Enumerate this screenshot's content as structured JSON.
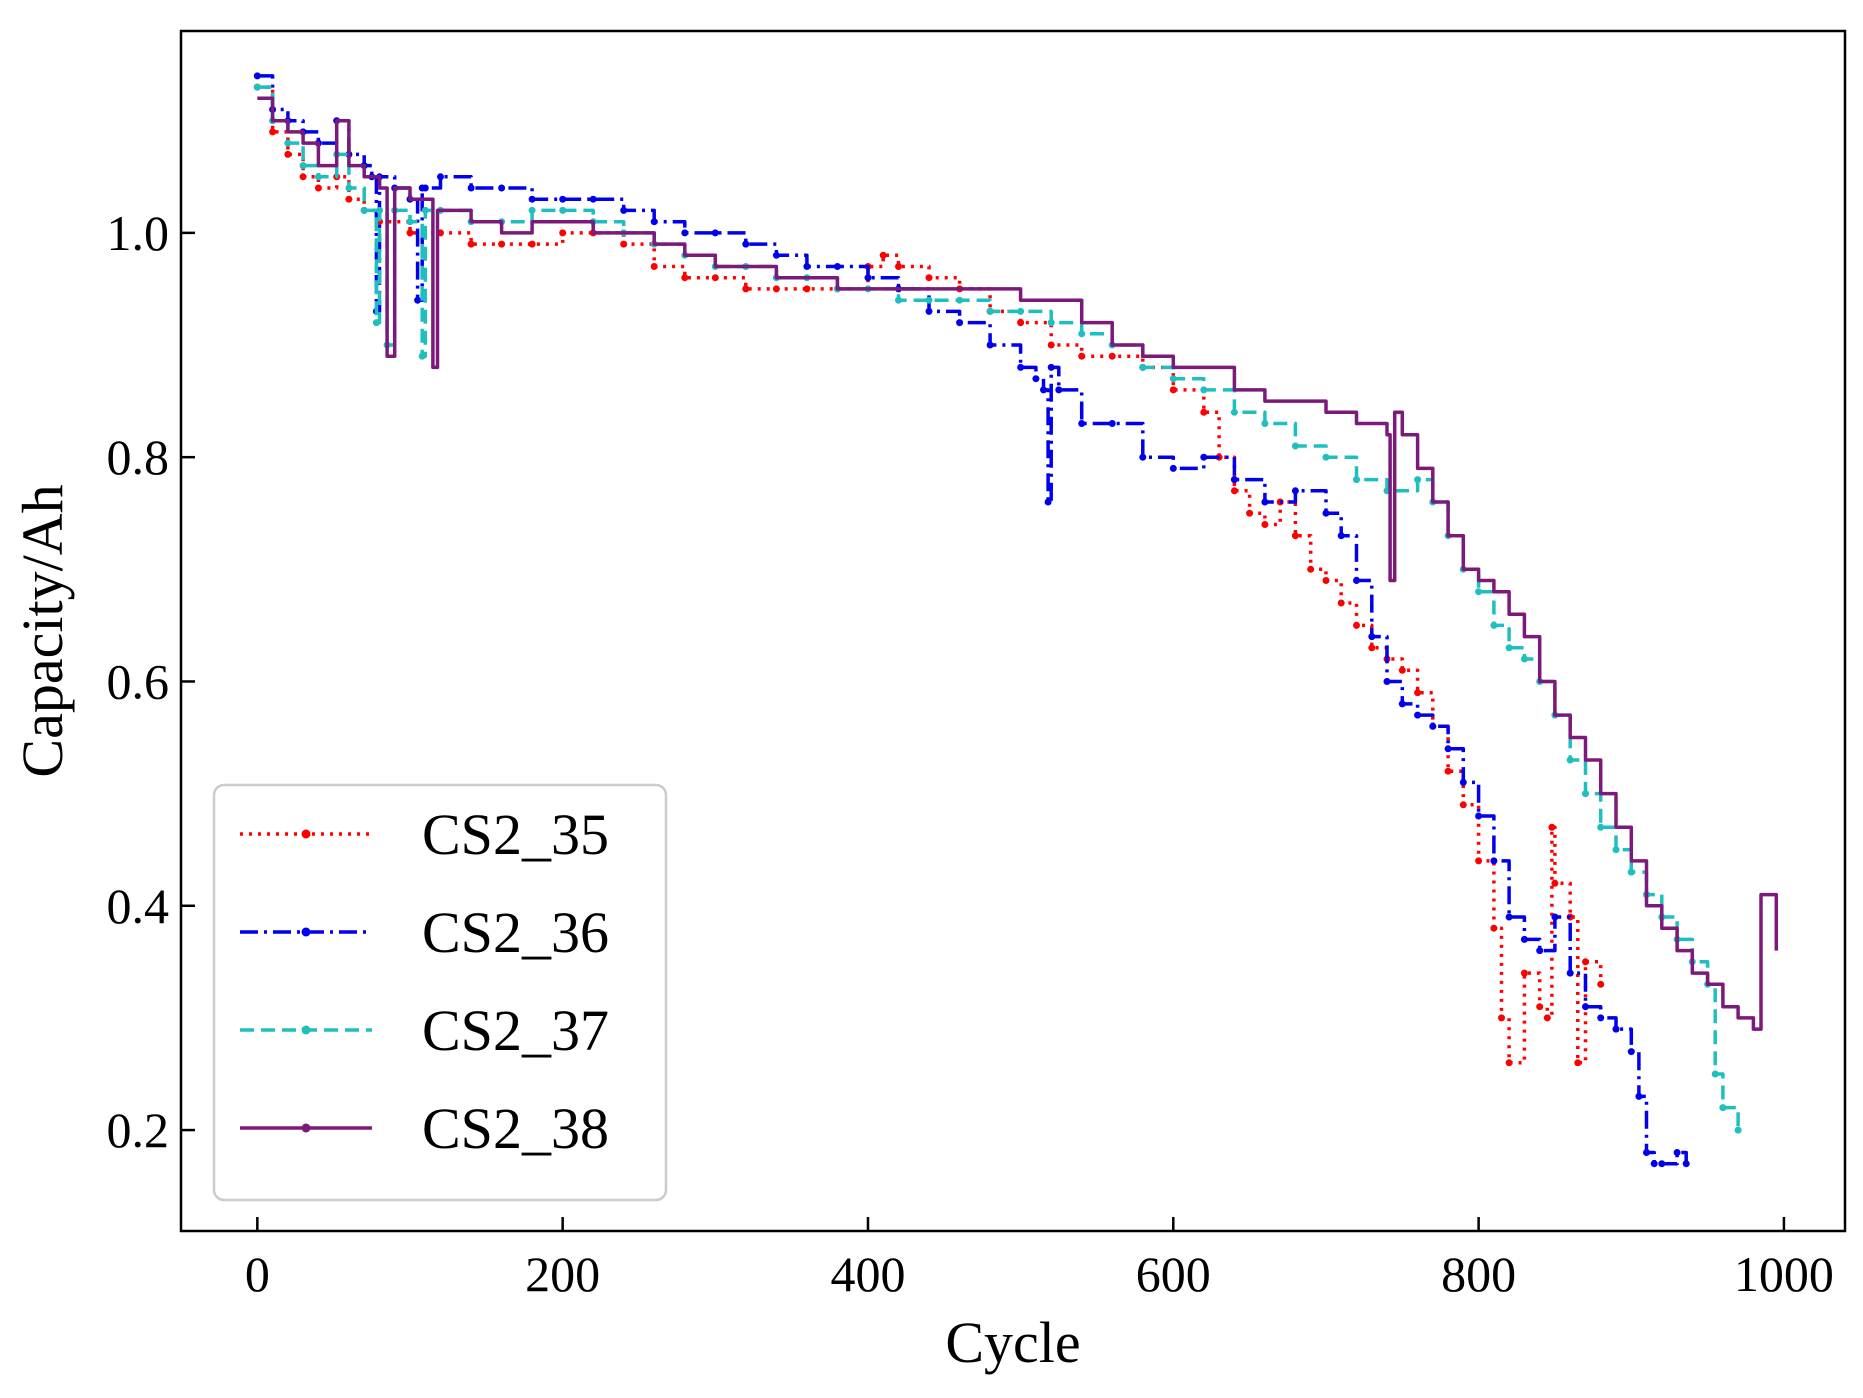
{
  "chart_data": {
    "type": "line",
    "title": "",
    "xlabel": "Cycle",
    "ylabel": "Capacity/Ah",
    "xlim": [
      -50,
      1040
    ],
    "ylim": [
      0.11,
      1.18
    ],
    "xticks": [
      0,
      200,
      400,
      600,
      800,
      1000
    ],
    "yticks": [
      0.2,
      0.4,
      0.6,
      0.8,
      1.0
    ],
    "xtick_labels": [
      "0",
      "200",
      "400",
      "600",
      "800",
      "1000"
    ],
    "ytick_labels": [
      "0.2",
      "0.4",
      "0.6",
      "0.8",
      "1.0"
    ],
    "grid": false,
    "legend_position": "lower-left",
    "series": [
      {
        "name": "CS2_35",
        "color": "#ff0000",
        "style": "dotted",
        "x": [
          0,
          10,
          20,
          30,
          40,
          52,
          60,
          70,
          80,
          100,
          120,
          140,
          160,
          180,
          200,
          220,
          240,
          260,
          280,
          300,
          320,
          340,
          360,
          380,
          400,
          410,
          420,
          440,
          460,
          480,
          500,
          520,
          540,
          560,
          580,
          600,
          620,
          630,
          640,
          650,
          660,
          670,
          680,
          690,
          700,
          710,
          720,
          730,
          740,
          750,
          760,
          770,
          780,
          790,
          800,
          810,
          815,
          820,
          830,
          840,
          845,
          848,
          850,
          860,
          865,
          870,
          880
        ],
        "y": [
          1.13,
          1.09,
          1.07,
          1.05,
          1.04,
          1.05,
          1.03,
          1.02,
          1.01,
          1.0,
          1.0,
          0.99,
          0.99,
          0.99,
          1.0,
          1.0,
          0.99,
          0.97,
          0.96,
          0.96,
          0.95,
          0.95,
          0.95,
          0.95,
          0.97,
          0.98,
          0.97,
          0.96,
          0.95,
          0.93,
          0.92,
          0.9,
          0.89,
          0.89,
          0.88,
          0.86,
          0.84,
          0.8,
          0.77,
          0.75,
          0.74,
          0.76,
          0.73,
          0.7,
          0.69,
          0.67,
          0.65,
          0.63,
          0.62,
          0.61,
          0.59,
          0.56,
          0.52,
          0.49,
          0.44,
          0.38,
          0.3,
          0.26,
          0.34,
          0.31,
          0.3,
          0.47,
          0.42,
          0.39,
          0.26,
          0.35,
          0.33
        ]
      },
      {
        "name": "CS2_36",
        "color": "#0000ee",
        "style": "dashdot",
        "x": [
          0,
          10,
          20,
          30,
          40,
          52,
          60,
          70,
          75,
          78,
          80,
          90,
          100,
          105,
          108,
          110,
          120,
          140,
          160,
          180,
          200,
          220,
          240,
          260,
          280,
          300,
          320,
          340,
          360,
          380,
          400,
          420,
          440,
          460,
          480,
          500,
          510,
          515,
          518,
          520,
          525,
          540,
          560,
          580,
          600,
          620,
          640,
          660,
          680,
          700,
          710,
          720,
          730,
          740,
          750,
          760,
          770,
          780,
          790,
          800,
          810,
          820,
          830,
          840,
          850,
          860,
          870,
          880,
          890,
          900,
          905,
          910,
          915,
          920,
          930,
          936
        ],
        "y": [
          1.14,
          1.11,
          1.1,
          1.09,
          1.08,
          1.1,
          1.07,
          1.06,
          1.05,
          0.93,
          1.05,
          1.04,
          1.03,
          0.94,
          1.04,
          1.04,
          1.05,
          1.04,
          1.04,
          1.03,
          1.03,
          1.03,
          1.02,
          1.01,
          1.0,
          1.0,
          0.99,
          0.98,
          0.97,
          0.97,
          0.96,
          0.95,
          0.93,
          0.92,
          0.9,
          0.88,
          0.87,
          0.86,
          0.76,
          0.88,
          0.86,
          0.83,
          0.83,
          0.8,
          0.79,
          0.8,
          0.78,
          0.76,
          0.77,
          0.75,
          0.73,
          0.69,
          0.64,
          0.6,
          0.58,
          0.57,
          0.56,
          0.54,
          0.51,
          0.48,
          0.44,
          0.39,
          0.37,
          0.36,
          0.39,
          0.34,
          0.31,
          0.3,
          0.29,
          0.27,
          0.23,
          0.18,
          0.17,
          0.17,
          0.18,
          0.17
        ]
      },
      {
        "name": "CS2_37",
        "color": "#1fbfbf",
        "style": "dashed",
        "x": [
          0,
          10,
          20,
          30,
          40,
          52,
          60,
          70,
          78,
          80,
          85,
          90,
          100,
          108,
          110,
          120,
          140,
          160,
          180,
          200,
          220,
          240,
          260,
          280,
          300,
          320,
          340,
          360,
          380,
          400,
          420,
          440,
          460,
          480,
          500,
          520,
          540,
          560,
          580,
          600,
          620,
          640,
          660,
          680,
          700,
          720,
          740,
          760,
          770,
          780,
          790,
          800,
          810,
          820,
          830,
          840,
          850,
          860,
          870,
          880,
          890,
          900,
          910,
          920,
          930,
          940,
          950,
          955,
          960,
          970
        ],
        "y": [
          1.13,
          1.1,
          1.08,
          1.06,
          1.05,
          1.07,
          1.04,
          1.02,
          0.92,
          1.02,
          0.9,
          1.02,
          1.01,
          0.89,
          1.02,
          1.02,
          1.01,
          1.01,
          1.02,
          1.02,
          1.01,
          1.0,
          0.99,
          0.98,
          0.97,
          0.97,
          0.96,
          0.96,
          0.95,
          0.95,
          0.94,
          0.94,
          0.94,
          0.93,
          0.93,
          0.92,
          0.91,
          0.9,
          0.88,
          0.87,
          0.86,
          0.84,
          0.83,
          0.81,
          0.8,
          0.78,
          0.77,
          0.78,
          0.76,
          0.73,
          0.7,
          0.68,
          0.65,
          0.63,
          0.62,
          0.6,
          0.57,
          0.53,
          0.5,
          0.47,
          0.45,
          0.43,
          0.41,
          0.39,
          0.37,
          0.35,
          0.33,
          0.25,
          0.22,
          0.2
        ]
      },
      {
        "name": "CS2_38",
        "color": "#7b1a7b",
        "style": "solid",
        "x": [
          0,
          10,
          20,
          30,
          40,
          52,
          60,
          70,
          80,
          85,
          90,
          100,
          110,
          115,
          118,
          120,
          140,
          160,
          180,
          200,
          220,
          240,
          260,
          280,
          300,
          320,
          340,
          360,
          380,
          400,
          420,
          440,
          460,
          480,
          500,
          520,
          540,
          560,
          580,
          600,
          620,
          640,
          660,
          680,
          700,
          720,
          740,
          742,
          745,
          750,
          760,
          770,
          780,
          790,
          800,
          810,
          820,
          830,
          840,
          850,
          860,
          870,
          880,
          890,
          900,
          910,
          920,
          930,
          940,
          950,
          960,
          970,
          980,
          985,
          995
        ],
        "y": [
          1.12,
          1.1,
          1.09,
          1.08,
          1.06,
          1.1,
          1.06,
          1.05,
          1.04,
          0.89,
          1.04,
          1.03,
          1.03,
          0.88,
          1.02,
          1.02,
          1.01,
          1.0,
          1.01,
          1.01,
          1.0,
          1.0,
          0.99,
          0.98,
          0.97,
          0.97,
          0.96,
          0.96,
          0.95,
          0.95,
          0.95,
          0.95,
          0.95,
          0.95,
          0.94,
          0.94,
          0.92,
          0.9,
          0.89,
          0.88,
          0.88,
          0.86,
          0.85,
          0.85,
          0.84,
          0.83,
          0.82,
          0.69,
          0.84,
          0.82,
          0.79,
          0.76,
          0.73,
          0.7,
          0.69,
          0.68,
          0.66,
          0.64,
          0.6,
          0.57,
          0.55,
          0.53,
          0.5,
          0.47,
          0.44,
          0.4,
          0.38,
          0.36,
          0.34,
          0.33,
          0.31,
          0.3,
          0.29,
          0.41,
          0.36
        ]
      }
    ]
  }
}
